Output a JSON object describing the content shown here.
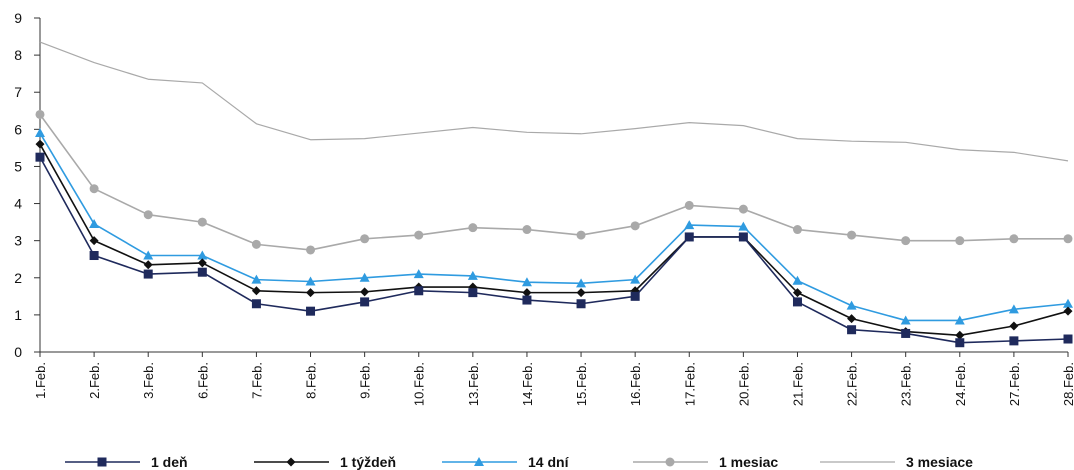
{
  "chart_data": {
    "type": "line",
    "title": "",
    "xlabel": "",
    "ylabel": "",
    "ylim": [
      0,
      9
    ],
    "y_ticks": [
      "0",
      "1",
      "2",
      "3",
      "4",
      "5",
      "6",
      "7",
      "8",
      "9"
    ],
    "grid": false,
    "legend_position": "bottom",
    "categories": [
      "1.Feb.",
      "2.Feb.",
      "3.Feb.",
      "6.Feb.",
      "7.Feb.",
      "8.Feb.",
      "9.Feb.",
      "10.Feb.",
      "13.Feb.",
      "14.Feb.",
      "15.Feb.",
      "16.Feb.",
      "17.Feb.",
      "20.Feb.",
      "21.Feb.",
      "22.Feb.",
      "23.Feb.",
      "24.Feb.",
      "27.Feb.",
      "28.Feb."
    ],
    "series": [
      {
        "name": "1 deň",
        "color": "#1f2a5c",
        "marker": "square",
        "values": [
          5.25,
          2.6,
          2.1,
          2.15,
          1.3,
          1.1,
          1.35,
          1.65,
          1.6,
          1.4,
          1.3,
          1.5,
          3.1,
          3.1,
          1.35,
          0.6,
          0.5,
          0.25,
          0.3,
          0.35
        ]
      },
      {
        "name": "1 týždeň",
        "color": "#111111",
        "marker": "diamond",
        "values": [
          5.6,
          3.0,
          2.35,
          2.4,
          1.65,
          1.6,
          1.62,
          1.75,
          1.75,
          1.6,
          1.6,
          1.65,
          3.1,
          3.1,
          1.6,
          0.9,
          0.55,
          0.45,
          0.7,
          1.1
        ]
      },
      {
        "name": "14 dní",
        "color": "#2f9be0",
        "marker": "triangle",
        "values": [
          5.9,
          3.45,
          2.6,
          2.6,
          1.95,
          1.9,
          2.0,
          2.1,
          2.05,
          1.88,
          1.85,
          1.95,
          3.42,
          3.38,
          1.92,
          1.25,
          0.85,
          0.85,
          1.15,
          1.3
        ]
      },
      {
        "name": "1 mesiac",
        "color": "#a9a9a9",
        "marker": "circle",
        "values": [
          6.4,
          4.4,
          3.7,
          3.5,
          2.9,
          2.75,
          3.05,
          3.15,
          3.35,
          3.3,
          3.15,
          3.4,
          3.95,
          3.85,
          3.3,
          3.15,
          3.0,
          3.0,
          3.05,
          3.05
        ]
      },
      {
        "name": "3 mesiace",
        "color": "#a9a9a9",
        "marker": "none",
        "values": [
          8.35,
          7.8,
          7.35,
          7.25,
          6.15,
          5.72,
          5.75,
          5.9,
          6.05,
          5.92,
          5.88,
          6.02,
          6.18,
          6.1,
          5.75,
          5.68,
          5.65,
          5.45,
          5.38,
          5.15
        ]
      }
    ]
  }
}
